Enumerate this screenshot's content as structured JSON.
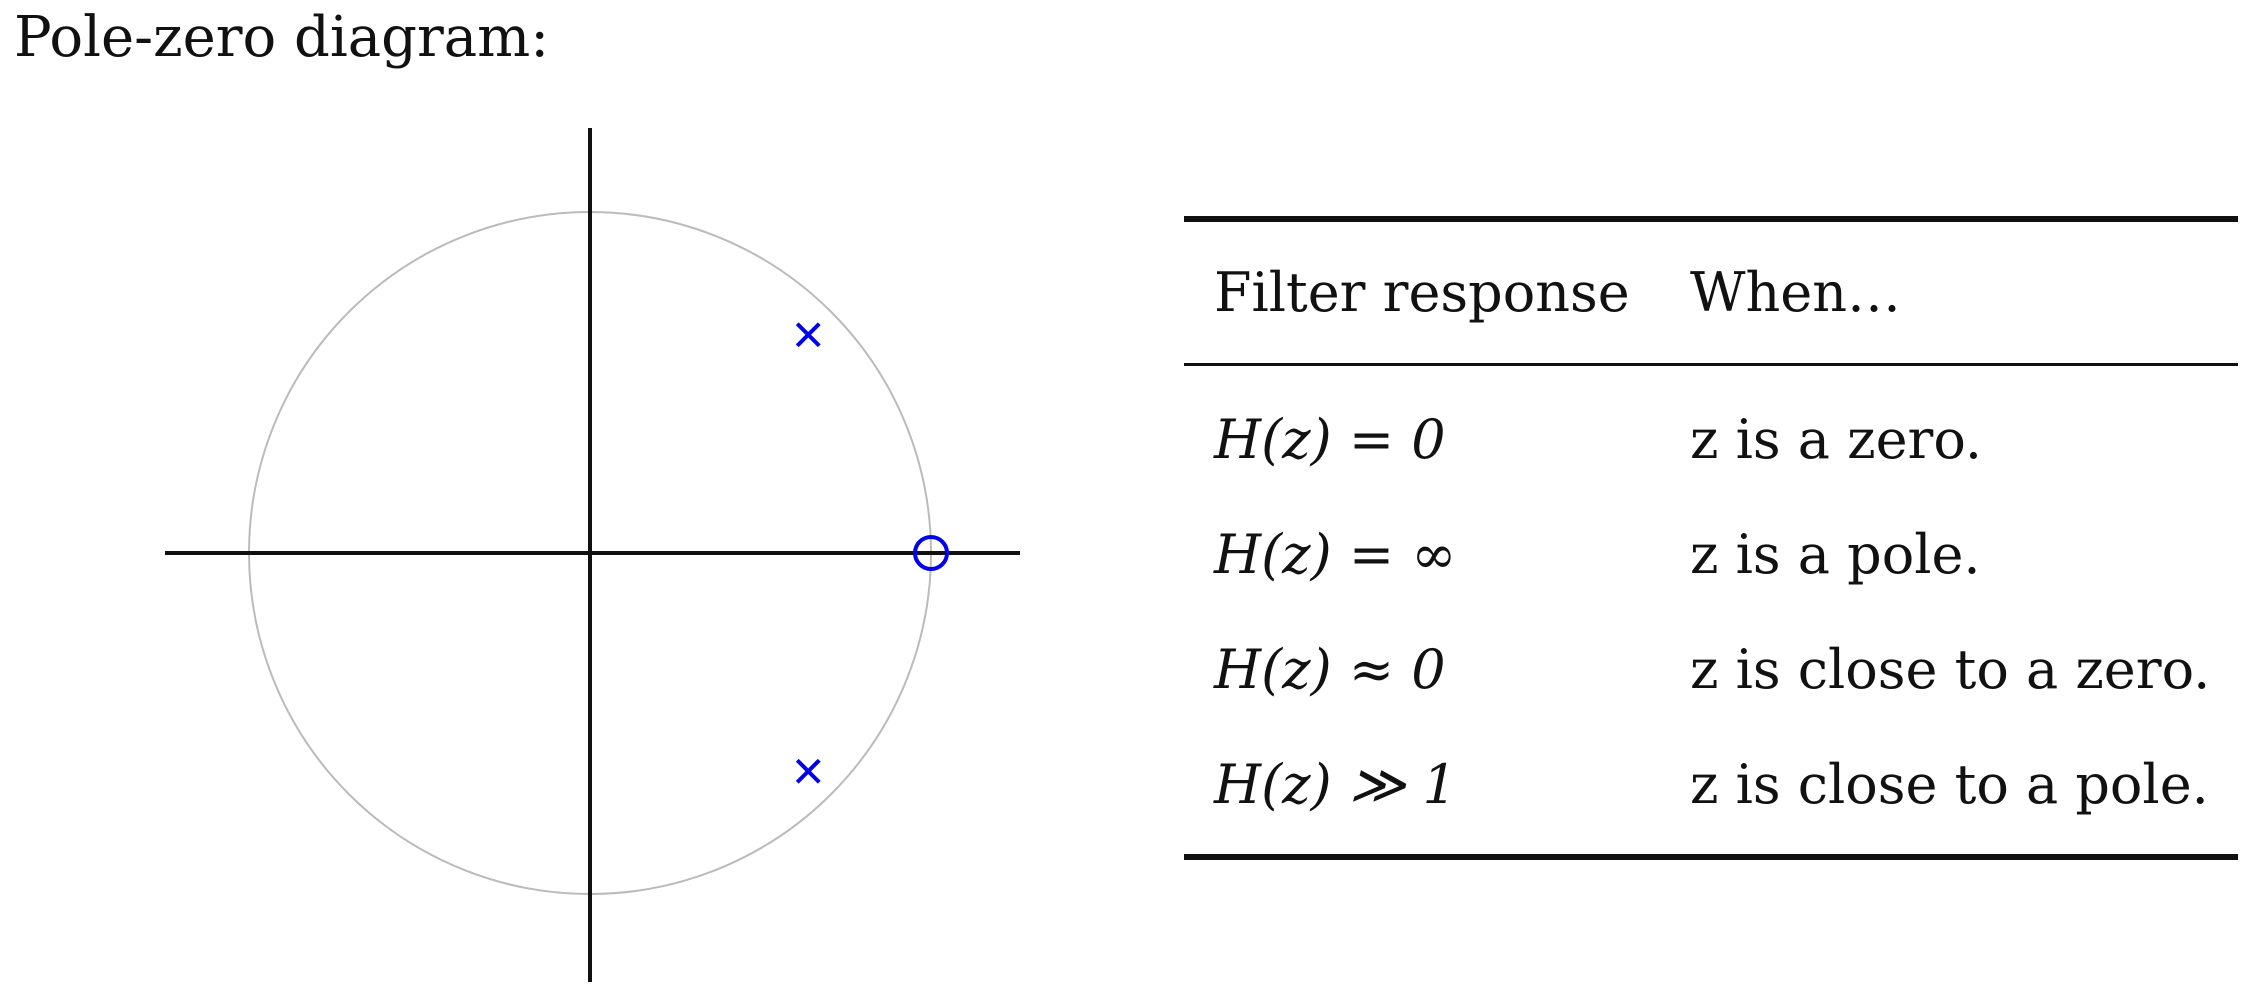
{
  "heading": "Pole-zero diagram:",
  "diagram": {
    "unit_circle_color": "#bbbbbb",
    "axis_color": "#111111",
    "marker_color": "#0000ee",
    "zeros": [
      {
        "re": 1.0,
        "im": 0.0
      }
    ],
    "poles": [
      {
        "re": 0.64,
        "im": 0.64
      },
      {
        "re": 0.64,
        "im": -0.64
      }
    ]
  },
  "table": {
    "headers": [
      "Filter response",
      "When…"
    ],
    "rows": [
      {
        "condition": "H(z) = 0",
        "meaning": "z is a zero."
      },
      {
        "condition": "H(z) = ∞",
        "meaning": "z is a pole."
      },
      {
        "condition": "H(z) ≈ 0",
        "meaning": "z is close to a zero."
      },
      {
        "condition": "H(z) ≫ 1",
        "meaning": "z is close to a pole."
      }
    ]
  }
}
